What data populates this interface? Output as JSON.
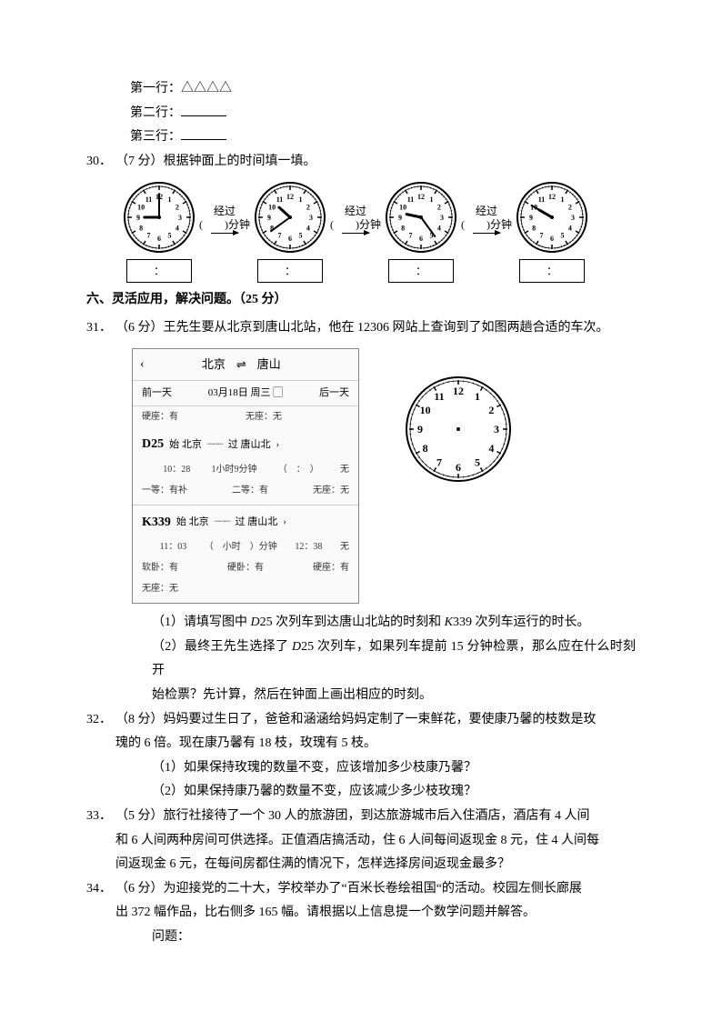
{
  "lines": {
    "row1_prefix": "第一行：",
    "row1_value": "△△△△",
    "row2_prefix": "第二行：",
    "row3_prefix": "第三行："
  },
  "q30": {
    "num": "30．",
    "points": "（7 分）",
    "text": "根据钟面上的时间填一填。",
    "gap_label_top": "经过",
    "gap_label_bottom": "(　　)分钟",
    "box_text": "：",
    "clocks": [
      {
        "hour_angle": -90,
        "minute_angle": 0
      },
      {
        "hour_angle": -48,
        "minute_angle": -126
      },
      {
        "hour_angle": -78,
        "minute_angle": 144
      },
      {
        "hour_angle": -60,
        "minute_angle": -60
      }
    ]
  },
  "section6": {
    "title": "六、灵活应用，解决问题。（25 分）"
  },
  "q31": {
    "num": "31．",
    "points": "（6 分）",
    "text": "王先生要从北京到唐山北站，他在 12306 网站上查询到了如图两趟合适的车次。",
    "sub1": "（1）请填写图中 ",
    "sub1_d25a": "D",
    "sub1_mid1": "25 次列车到达唐山北站的时刻和 ",
    "sub1_k": "K",
    "sub1_mid2": "339 次列车运行的时长。",
    "sub2a": "（2）最终王先生选择了 ",
    "sub2_d": "D",
    "sub2b": "25 次列车，如果列车提前 15 分钟检票，那么应在什么时刻开",
    "sub2c": "始检票？先计算，然后在钟面上画出相应的时刻。",
    "ticket": {
      "from": "北京",
      "arrow": "⇌",
      "to": "唐山",
      "prev": "前一天",
      "date": "03月18日 周三",
      "cal": "▢",
      "next": "后一天",
      "row_seat1": "硬座：有",
      "row_seat2": "无座：无",
      "d25": {
        "code": "D25",
        "from_lbl": "始 北京",
        "to_lbl": "过 唐山北",
        "dep": "10：28",
        "dur": "1小时9分钟",
        "arr": "（　：　）",
        "seat_a": "一等：有补",
        "seat_b": "二等：有",
        "seat_c": "无座：无"
      },
      "k339": {
        "code": "K339",
        "from_lbl": "始 北京",
        "to_lbl": "过 唐山北",
        "dep": "11：03",
        "dur": "（　小时　）分钟",
        "arr": "12：38",
        "seat_a": "软卧：有",
        "seat_b": "硬卧：有",
        "seat_c": "硬座：有",
        "seat_d": "无座：无"
      }
    }
  },
  "q32": {
    "num": "32．",
    "points": "（8 分）",
    "text1": "妈妈要过生日了，爸爸和涵涵给妈妈定制了一束鲜花，要使康乃馨的枝数是玫",
    "text2": "瑰的 6 倍。现在康乃馨有 18 枝，玫瑰有 5 枝。",
    "sub1": "（1）如果保持玫瑰的数量不变，应该增加多少枝康乃馨？",
    "sub2": "（2）如果保持康乃馨的数量不变，应该减少多少枝玫瑰？"
  },
  "q33": {
    "num": "33．",
    "points": "（5 分）",
    "text1": "旅行社接待了一个 30 人的旅游团，到达旅游城市后入住酒店，酒店有 4 人间",
    "text2": "和 6 人间两种房间可供选择。正值酒店搞活动，住 6 人间每间返现金 8 元，住 4 人间每",
    "text3": "间返现金 6 元，在每间房都住满的情况下，怎样选择房间返现金最多？"
  },
  "q34": {
    "num": "34．",
    "points": "（6 分）",
    "text1": "为迎接党的二十大，学校举办了“百米长卷绘祖国“的活动。校园左侧长廊展",
    "text2": "出 372 幅作品，比右侧多 165 幅。请根据以上信息提一个数学问题并解答。",
    "sub": "问题："
  },
  "clock_style": {
    "small_radius": 36,
    "big_radius": 55,
    "face_fill": "#ffffff",
    "stroke": "#000000",
    "number_fontsize_small": 8,
    "number_fontsize_big": 12
  }
}
